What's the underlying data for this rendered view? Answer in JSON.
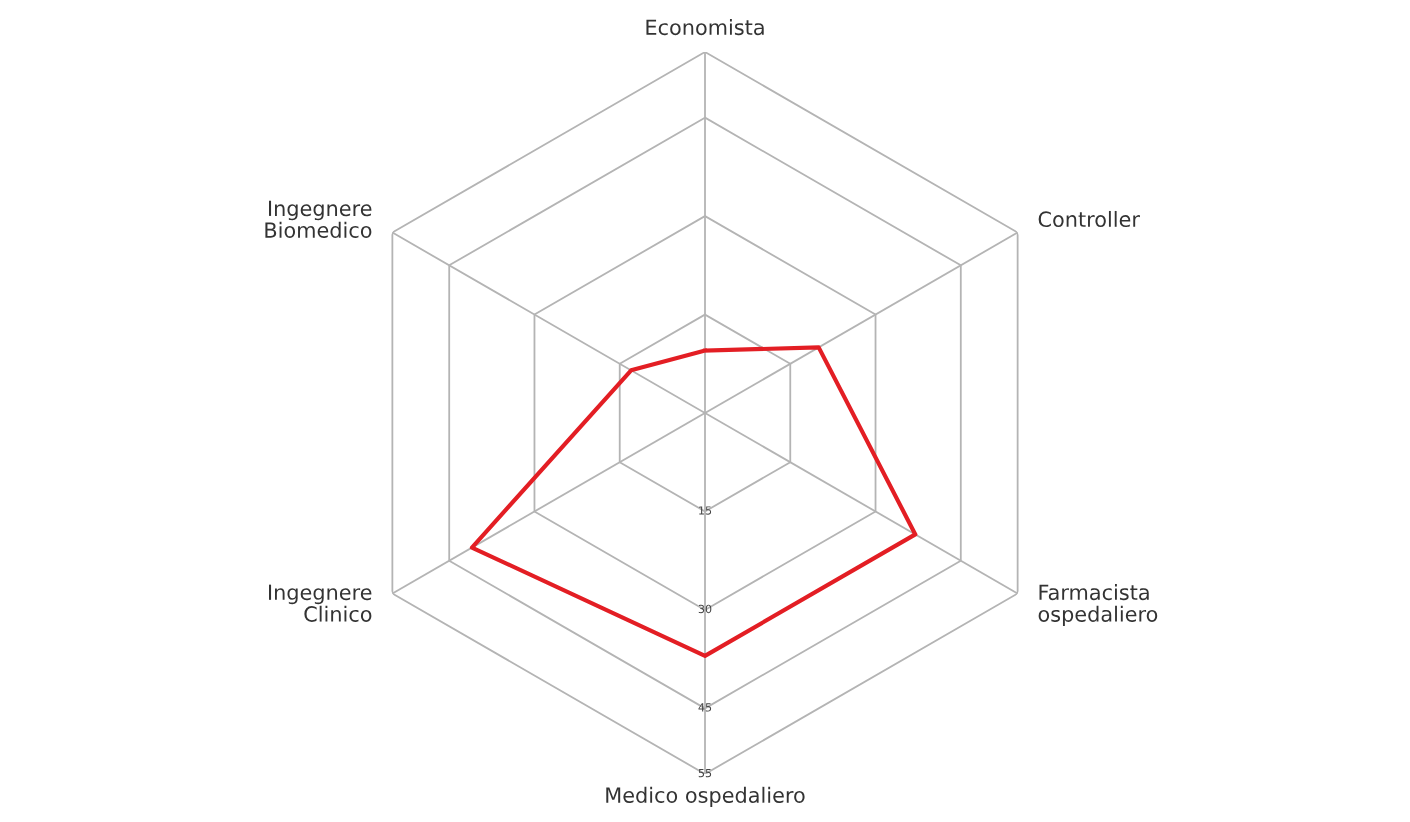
{
  "chart_data": {
    "type": "radar",
    "categories": [
      "Economista",
      "Controller",
      "Farmacista\nospedaliero",
      "Medico ospedaliero",
      "Ingegnere\nClinico",
      "Ingegnere\nBiomedico"
    ],
    "series": [
      {
        "color": "#e31e24",
        "values": [
          9.5,
          20,
          37,
          37,
          41,
          13
        ]
      }
    ],
    "ylim": [
      0,
      55
    ],
    "yticks": [
      15,
      30,
      45,
      55
    ],
    "grid": true,
    "marker": "none",
    "line_style": "solid"
  }
}
